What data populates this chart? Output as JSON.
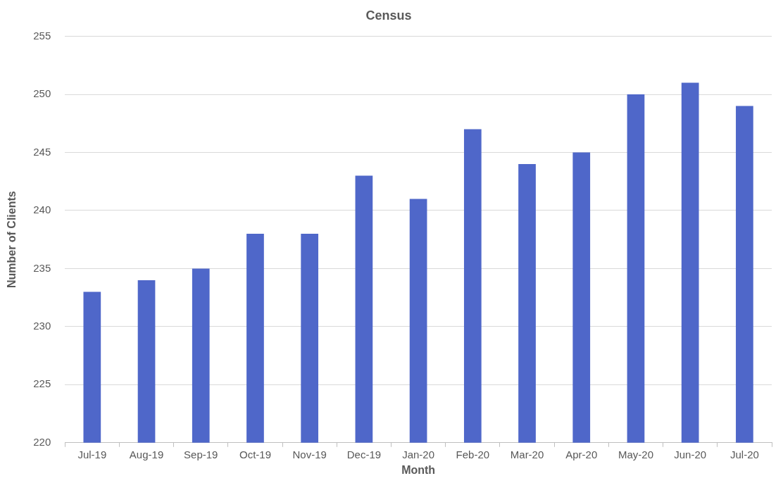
{
  "chart_data": {
    "type": "bar",
    "title": "Census",
    "xlabel": "Month",
    "ylabel": "Number of Clients",
    "categories": [
      "Jul-19",
      "Aug-19",
      "Sep-19",
      "Oct-19",
      "Nov-19",
      "Dec-19",
      "Jan-20",
      "Feb-20",
      "Mar-20",
      "Apr-20",
      "May-20",
      "Jun-20",
      "Jul-20"
    ],
    "values": [
      233,
      234,
      235,
      238,
      238,
      243,
      241,
      247,
      244,
      245,
      250,
      251,
      249
    ],
    "color": "#4f67c9",
    "ylim": [
      220,
      255
    ],
    "yticks": [
      220,
      225,
      230,
      235,
      240,
      245,
      250,
      255
    ],
    "grid": "y",
    "legend": false
  }
}
